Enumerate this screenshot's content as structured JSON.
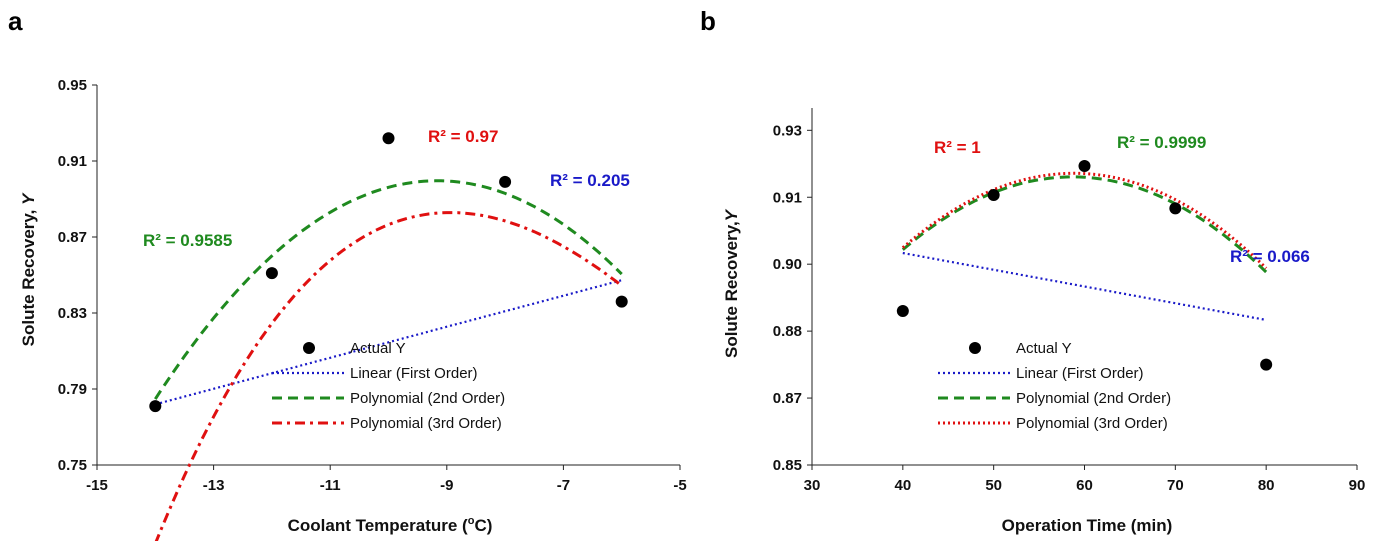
{
  "chart_data": [
    {
      "panel": "a",
      "type": "scatter",
      "xlabel_main": "Coolant Temperature (",
      "xlabel_sup": "o",
      "xlabel_tail": "C)",
      "ylabel_main": "Solute Recovery, ",
      "ylabel_var": "Y",
      "xlim": [
        -15,
        -5
      ],
      "ylim": [
        0.75,
        0.95
      ],
      "x_ticks": [
        "-15",
        "-13",
        "-11",
        "-9",
        "-7",
        "-5"
      ],
      "x_tick_values": [
        -15,
        -13,
        -11,
        -9,
        -7,
        -5
      ],
      "y_ticks": [
        "0.75",
        "0.79",
        "0.83",
        "0.87",
        "0.91",
        "0.95"
      ],
      "y_tick_values": [
        0.75,
        0.79,
        0.83,
        0.87,
        0.91,
        0.95
      ],
      "actual": {
        "name": "Actual Y",
        "x": [
          -14,
          -12,
          -10,
          -8,
          -6
        ],
        "y": [
          0.781,
          0.851,
          0.922,
          0.899,
          0.836
        ]
      },
      "fits": [
        {
          "name": "Linear (First Order)",
          "color": "#1a1ac8",
          "style": "dotted",
          "coef": [
            0.89625,
            0.008165
          ],
          "r2_label": "R² = 0.205"
        },
        {
          "name": "Polynomial (2nd Order)",
          "color": "#1f8a1f",
          "style": "dashed",
          "coef": [
            0.48725,
            -0.09,
            -0.004911
          ],
          "r2_label": "R² = 0.9585"
        },
        {
          "name": "Polynomial (3rd Order)",
          "color": "#e01010",
          "style": "dashdot",
          "coef": [
            0.6662,
            -0.0252,
            0.0025,
            0.0002917
          ],
          "r2_label": "R² = 0.97"
        }
      ],
      "legend_position": "bottom-right"
    },
    {
      "panel": "b",
      "type": "scatter",
      "xlabel_main": "Operation Time (min)",
      "ylabel_main": "Solute Recovery,",
      "ylabel_var": "Y",
      "xlim": [
        30,
        90
      ],
      "ylim": [
        0.85,
        0.93
      ],
      "x_ticks": [
        "30",
        "40",
        "50",
        "60",
        "70",
        "80",
        "90"
      ],
      "x_tick_values": [
        30,
        40,
        50,
        60,
        70,
        80,
        90
      ],
      "y_ticks": [
        "0.85",
        "0.87",
        "0.88",
        "0.90",
        "0.91",
        "0.93"
      ],
      "y_tick_values": [
        0.85,
        0.865,
        0.88,
        0.895,
        0.91,
        0.925
      ],
      "actual": {
        "name": "Actual Y",
        "x": [
          40,
          50,
          60,
          70,
          80
        ],
        "y": [
          0.8845,
          0.9105,
          0.917,
          0.9075,
          0.8725
        ]
      },
      "fits": [
        {
          "name": "Linear (First Order)",
          "color": "#1a1ac8",
          "style": "dotted",
          "coef": [
            0.9125,
            -0.000375
          ],
          "r2_label": "R² = 0.066"
        },
        {
          "name": "Polynomial (2nd Order)",
          "color": "#1f8a1f",
          "style": "dashed",
          "coef": [
            0.75325,
            0.0055,
            -4.688e-05
          ],
          "r2_label": "R² = 0.9999"
        },
        {
          "name": "Polynomial (3rd Order)",
          "color": "#e01010",
          "style": "dotted",
          "coef": [
            0.7545,
            0.005425,
            -4.5e-05,
            -1.25e-08
          ],
          "r2_label": "R² = 1"
        }
      ],
      "legend_position": "bottom-center"
    }
  ]
}
